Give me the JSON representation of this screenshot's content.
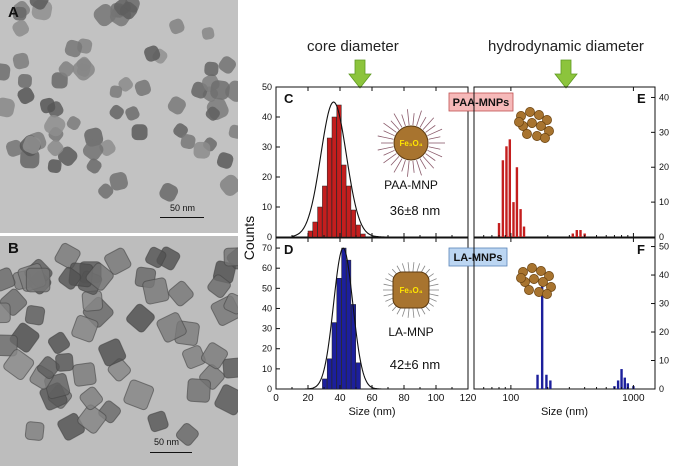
{
  "panels": {
    "A": {
      "letter": "A",
      "scale_label": "50 nm"
    },
    "B": {
      "letter": "B",
      "scale_label": "50 nm"
    }
  },
  "headers": {
    "core": "core diameter",
    "hydro": "hydrodynamic diameter"
  },
  "colors": {
    "paa_bar": "#c41e1e",
    "la_bar": "#1c1f9c",
    "fit_curve": "#111111",
    "arrow": "#8cc43c",
    "paa_badge": "#f6b9b9",
    "la_badge": "#bcd6f2",
    "nanoparticle": "#a8742f"
  },
  "chart_data": [
    {
      "id": "C",
      "type": "bar",
      "panel_letter": "C",
      "series_name": "PAA-MNP",
      "xlim": [
        0,
        120
      ],
      "ylim": [
        0,
        50
      ],
      "xticks": [
        0,
        20,
        40,
        60,
        80,
        100,
        120
      ],
      "yticks": [
        0,
        10,
        20,
        30,
        40,
        50
      ],
      "xlabel": "",
      "ylabel": "",
      "bin_width": 3,
      "bins": [
        20,
        23,
        26,
        29,
        32,
        35,
        38,
        41,
        44,
        47,
        50,
        53
      ],
      "values": [
        2,
        5,
        10,
        17,
        33,
        40,
        44,
        24,
        17,
        9,
        4,
        1
      ],
      "fit": {
        "type": "gaussian",
        "mean": 36,
        "sigma": 8,
        "peak": 45
      },
      "annotation": "36±8 nm",
      "badge": "PAA-MNPs",
      "particle_label": "PAA-MNP",
      "particle_formula": "Fe₃O₄"
    },
    {
      "id": "E",
      "type": "bar",
      "panel_letter": "E",
      "xscale": "log",
      "xlim": [
        50,
        1500
      ],
      "ylim": [
        0,
        43
      ],
      "xticks": [
        100,
        1000
      ],
      "xticklabels": [
        "",
        ""
      ],
      "yticks": [
        0,
        10,
        20,
        30,
        40
      ],
      "x": [
        80,
        86,
        92,
        98,
        105,
        112,
        120,
        128,
        320,
        345,
        370,
        400
      ],
      "values": [
        4,
        22,
        26,
        28,
        10,
        20,
        8,
        3,
        1,
        2,
        2,
        1
      ]
    },
    {
      "id": "D",
      "type": "bar",
      "panel_letter": "D",
      "series_name": "LA-MNP",
      "xlim": [
        0,
        120
      ],
      "ylim": [
        0,
        75
      ],
      "xticks": [
        0,
        20,
        40,
        60,
        80,
        100,
        120
      ],
      "yticks": [
        0,
        10,
        20,
        30,
        40,
        50,
        60,
        70
      ],
      "xlabel": "Size (nm)",
      "ylabel": "Counts",
      "bin_width": 3,
      "bins": [
        29,
        32,
        35,
        38,
        41,
        44,
        47,
        50
      ],
      "values": [
        5,
        15,
        33,
        55,
        70,
        64,
        42,
        13
      ],
      "fit": {
        "type": "gaussian",
        "mean": 42,
        "sigma": 6,
        "peak": 70
      },
      "annotation": "42±6 nm",
      "badge": "LA-MNPs",
      "particle_label": "LA-MNP",
      "particle_formula": "Fe₃O₄"
    },
    {
      "id": "F",
      "type": "bar",
      "panel_letter": "F",
      "xscale": "log",
      "xlim": [
        50,
        1500
      ],
      "ylim": [
        0,
        53
      ],
      "xticks": [
        100,
        1000
      ],
      "xticklabels": [
        "100",
        "1000"
      ],
      "yticks": [
        0,
        10,
        20,
        30,
        40,
        50
      ],
      "xlabel": "Size (nm)",
      "x": [
        165,
        180,
        195,
        210,
        700,
        750,
        800,
        850,
        900,
        1000
      ],
      "values": [
        5,
        38,
        5,
        3,
        1,
        3,
        7,
        4,
        2,
        1
      ]
    }
  ]
}
